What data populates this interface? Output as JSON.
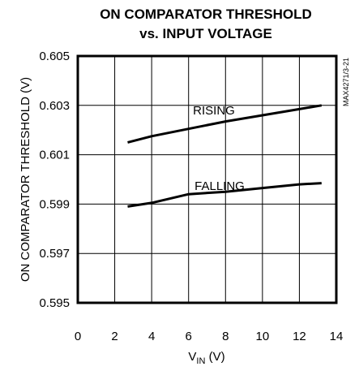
{
  "chart_data": {
    "type": "line",
    "title_line1": "ON COMPARATOR THRESHOLD",
    "title_line2": "vs. INPUT VOLTAGE",
    "ylabel": "ON COMPARATOR THRESHOLD (V)",
    "xlabel_main": "V",
    "xlabel_sub": "IN",
    "xlabel_unit": " (V)",
    "xlim": [
      0,
      14
    ],
    "ylim": [
      0.595,
      0.605
    ],
    "x_ticks": [
      "0",
      "2",
      "4",
      "6",
      "8",
      "10",
      "12",
      "14"
    ],
    "y_ticks": [
      "0.595",
      "0.597",
      "0.599",
      "0.601",
      "0.603",
      "0.605"
    ],
    "grid": true,
    "watermark": "MAX4271/3-21",
    "series": [
      {
        "name": "RISING",
        "x": [
          2.7,
          4,
          6,
          8,
          10,
          12,
          13.2
        ],
        "y": [
          0.6015,
          0.60175,
          0.60205,
          0.60235,
          0.6026,
          0.60285,
          0.603
        ]
      },
      {
        "name": "FALLING",
        "x": [
          2.7,
          4,
          6,
          8,
          10,
          12,
          13.2
        ],
        "y": [
          0.5989,
          0.59905,
          0.5994,
          0.5995,
          0.59965,
          0.5998,
          0.59985
        ]
      }
    ]
  }
}
